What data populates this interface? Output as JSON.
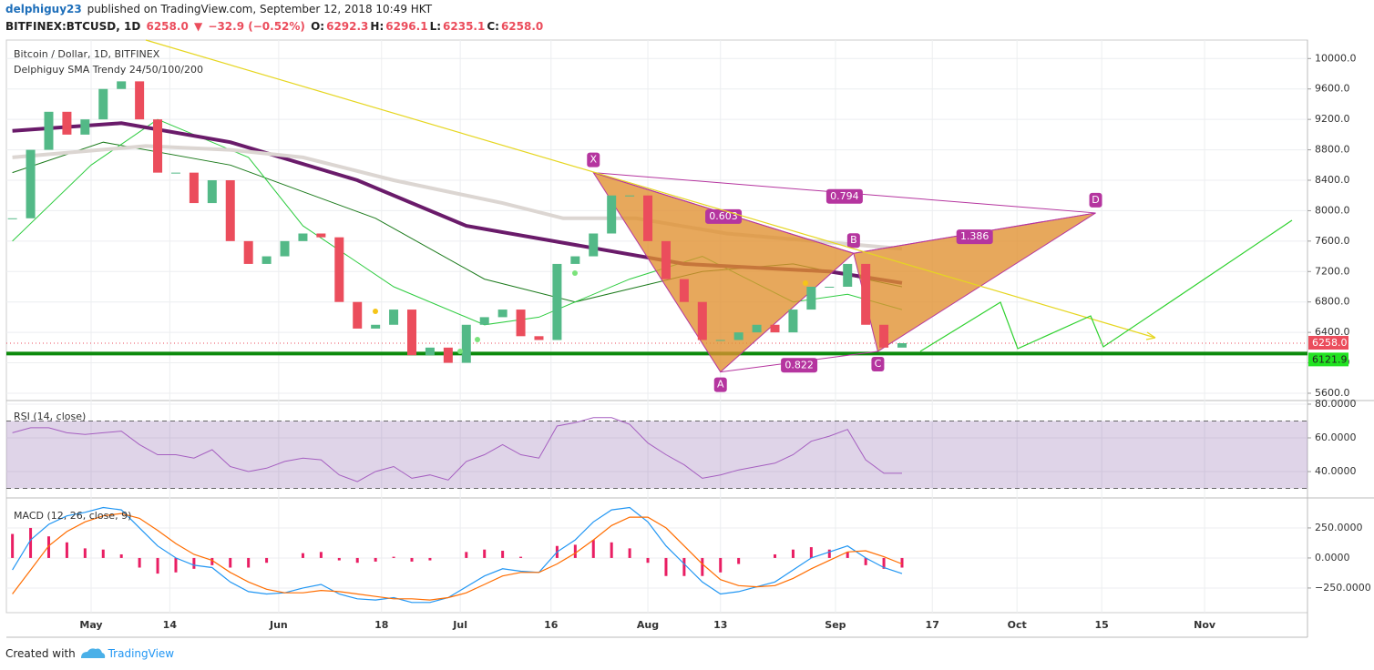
{
  "header": {
    "author": "delphiguy23",
    "published": "published on TradingView.com, September 12, 2018 10:49 HKT",
    "symbol": "BITFINEX:BTCUSD, 1D",
    "last": "6258.0",
    "arrow": "▼",
    "change": "−32.9 (−0.52%)",
    "ohlc": [
      [
        "O:",
        "6292.3"
      ],
      [
        "H:",
        "6296.1"
      ],
      [
        "L:",
        "6235.1"
      ],
      [
        "C:",
        "6258.0"
      ]
    ]
  },
  "chart_data": [
    {
      "type": "candlestick",
      "title": "Bitcoin / Dollar, 1D, BITFINEX",
      "subtitle": "Delphiguy SMA Trendy 24/50/100/200",
      "up_color": "#53b987",
      "down_color": "#eb4d5c",
      "x": [
        "04-18",
        "04-21",
        "04-24",
        "04-27",
        "04-30",
        "05-03",
        "05-06",
        "05-09",
        "05-12",
        "05-15",
        "05-18",
        "05-21",
        "05-24",
        "05-27",
        "05-30",
        "06-02",
        "06-05",
        "06-08",
        "06-11",
        "06-14",
        "06-17",
        "06-20",
        "06-23",
        "06-26",
        "06-29",
        "07-02",
        "07-05",
        "07-08",
        "07-11",
        "07-14",
        "07-17",
        "07-20",
        "07-23",
        "07-26",
        "07-29",
        "08-01",
        "08-04",
        "08-07",
        "08-10",
        "08-13",
        "08-16",
        "08-19",
        "08-22",
        "08-25",
        "08-28",
        "08-31",
        "09-03",
        "09-06",
        "09-09",
        "09-12"
      ],
      "close": [
        7900,
        8800,
        9300,
        9000,
        9200,
        9600,
        9700,
        9200,
        8500,
        8500,
        8100,
        8400,
        7600,
        7300,
        7400,
        7600,
        7700,
        7650,
        6800,
        6450,
        6500,
        6700,
        6100,
        6200,
        6000,
        6500,
        6600,
        6700,
        6350,
        6300,
        7300,
        7400,
        7700,
        8200,
        8200,
        7600,
        7100,
        6800,
        6300,
        6300,
        6400,
        6500,
        6400,
        6700,
        7000,
        7000,
        7300,
        6500,
        6200,
        6258
      ],
      "xlim": [
        "04-17",
        "11-18"
      ],
      "xticks": [
        {
          "value": "05-01",
          "label": "May"
        },
        {
          "value": "05-14",
          "label": "14"
        },
        {
          "value": "06-01",
          "label": "Jun"
        },
        {
          "value": "06-18",
          "label": "18"
        },
        {
          "value": "07-01",
          "label": "Jul"
        },
        {
          "value": "07-16",
          "label": "16"
        },
        {
          "value": "08-01",
          "label": "Aug"
        },
        {
          "value": "08-13",
          "label": "13"
        },
        {
          "value": "09-01",
          "label": "Sep"
        },
        {
          "value": "09-17",
          "label": "17"
        },
        {
          "value": "10-01",
          "label": "Oct"
        },
        {
          "value": "10-15",
          "label": "15"
        },
        {
          "value": "11-01",
          "label": "Nov"
        }
      ],
      "ylim": [
        5504,
        10243
      ],
      "yticks": [
        {
          "value": 5600,
          "label": "5600.0"
        },
        {
          "value": 6000,
          "label": "6000.0"
        },
        {
          "value": 6400,
          "label": "6400.0"
        },
        {
          "value": 6800,
          "label": "6800.0"
        },
        {
          "value": 7200,
          "label": "7200.0"
        },
        {
          "value": 7600,
          "label": "7600.0"
        },
        {
          "value": 8000,
          "label": "8000.0"
        },
        {
          "value": 8400,
          "label": "8400.0"
        },
        {
          "value": 8800,
          "label": "8800.0"
        },
        {
          "value": 9200,
          "label": "9200.0"
        },
        {
          "value": 9600,
          "label": "9600.0"
        },
        {
          "value": 10000,
          "label": "10000.0"
        }
      ],
      "grid": true,
      "series": [
        {
          "color": "#1b7a1b",
          "width": 1,
          "x": [
            "04-18",
            "05-03",
            "05-24",
            "06-17",
            "07-05",
            "07-20",
            "08-10",
            "08-25",
            "09-12"
          ],
          "values": [
            8500,
            8900,
            8600,
            7900,
            7100,
            6800,
            7200,
            7300,
            7000
          ]
        },
        {
          "color": "#2ecc40",
          "width": 1,
          "x": [
            "04-18",
            "05-01",
            "05-12",
            "05-27",
            "06-05",
            "06-20",
            "07-05",
            "07-14",
            "07-29",
            "08-10",
            "08-25",
            "09-03",
            "09-12"
          ],
          "values": [
            7600,
            8600,
            9200,
            8700,
            7800,
            7000,
            6500,
            6600,
            7100,
            7400,
            6800,
            6900,
            6700
          ]
        },
        {
          "color": "#6a1b6a",
          "width": 4,
          "x": [
            "04-18",
            "05-06",
            "05-24",
            "06-14",
            "07-02",
            "07-20",
            "08-07",
            "08-31",
            "09-12"
          ],
          "values": [
            9050,
            9150,
            8900,
            8400,
            7800,
            7550,
            7300,
            7200,
            7050
          ]
        },
        {
          "color": "#dcd6d2",
          "width": 4,
          "x": [
            "04-18",
            "05-10",
            "05-24",
            "06-05",
            "06-20",
            "07-08",
            "07-18",
            "07-30",
            "08-14",
            "09-12"
          ],
          "values": [
            8700,
            8850,
            8800,
            8700,
            8400,
            8100,
            7900,
            7900,
            7700,
            7500
          ]
        }
      ],
      "pattern": {
        "points": [
          {
            "label": "X",
            "x": "07-23",
            "value": 8500
          },
          {
            "label": "A",
            "x": "08-13",
            "value": 5880
          },
          {
            "label": "B",
            "x": "09-04",
            "value": 7440
          },
          {
            "label": "C",
            "x": "09-08",
            "value": 6150
          },
          {
            "label": "D",
            "x": "10-14",
            "value": 7970
          }
        ],
        "ratios": [
          0.603,
          0.794,
          0.822,
          1.386
        ],
        "fill": "#e0902e",
        "line_color": "#b5359f"
      },
      "price_line": {
        "value": 6258,
        "label": "6258.0",
        "color": "#eb4d5c"
      },
      "support_line": {
        "value": 6121.9,
        "label": "6121.9",
        "color": "#0c8a0c",
        "label_color": "#22e322"
      }
    },
    {
      "type": "line",
      "title": "RSI (14, close)",
      "color": "#a55fc0",
      "values": [
        63,
        66,
        66,
        63,
        62,
        63,
        64,
        56,
        50,
        50,
        48,
        53,
        43,
        40,
        42,
        46,
        48,
        47,
        38,
        34,
        40,
        43,
        36,
        38,
        35,
        46,
        50,
        56,
        50,
        48,
        67,
        69,
        72,
        72,
        68,
        57,
        50,
        44,
        36,
        38,
        41,
        43,
        45,
        50,
        58,
        61,
        65,
        47,
        39,
        39
      ],
      "ylim": [
        24.9,
        81.6
      ],
      "yticks": [
        {
          "value": 40,
          "label": "40.0000"
        },
        {
          "value": 60,
          "label": "60.0000"
        },
        {
          "value": 80,
          "label": "80.0000"
        }
      ],
      "band": [
        30,
        70
      ],
      "band_color": "rgba(110,60,150,0.22)"
    },
    {
      "type": "macd",
      "title": "MACD (12, 26, close, 9)",
      "series": [
        {
          "color": "#2196f3",
          "values": [
            -100,
            150,
            280,
            350,
            380,
            420,
            400,
            250,
            100,
            0,
            -60,
            -80,
            -200,
            -280,
            -300,
            -290,
            -250,
            -220,
            -300,
            -340,
            -350,
            -330,
            -370,
            -370,
            -330,
            -240,
            -150,
            -90,
            -110,
            -120,
            50,
            150,
            300,
            400,
            420,
            300,
            100,
            -50,
            -200,
            -300,
            -280,
            -240,
            -200,
            -100,
            0,
            50,
            100,
            0,
            -80,
            -130
          ]
        },
        {
          "color": "#ff6d00",
          "values": [
            -300,
            -100,
            100,
            220,
            300,
            350,
            370,
            330,
            230,
            120,
            30,
            -20,
            -120,
            -200,
            -260,
            -290,
            -290,
            -270,
            -280,
            -300,
            -320,
            -340,
            -340,
            -350,
            -330,
            -290,
            -220,
            -150,
            -120,
            -120,
            -50,
            40,
            150,
            270,
            340,
            340,
            250,
            100,
            -50,
            -180,
            -230,
            -240,
            -230,
            -170,
            -90,
            -20,
            50,
            60,
            10,
            -50
          ]
        }
      ],
      "histogram": {
        "color": "#e91e63",
        "values": [
          200,
          250,
          180,
          130,
          80,
          70,
          30,
          -80,
          -130,
          -120,
          -90,
          -60,
          -80,
          -80,
          -40,
          0,
          40,
          50,
          -20,
          -40,
          -30,
          10,
          -30,
          -20,
          0,
          50,
          70,
          60,
          10,
          0,
          100,
          110,
          150,
          130,
          80,
          -40,
          -150,
          -150,
          -150,
          -120,
          -50,
          0,
          30,
          70,
          90,
          70,
          50,
          -60,
          -90,
          -80
        ]
      },
      "ylim": [
        -455,
        492
      ],
      "yticks": [
        {
          "value": -250,
          "label": "−250.0000"
        },
        {
          "value": 0,
          "label": "0.0000"
        },
        {
          "value": 250,
          "label": "250.0000"
        }
      ]
    }
  ],
  "footer": {
    "created": "Created with",
    "brand": "TradingView"
  }
}
